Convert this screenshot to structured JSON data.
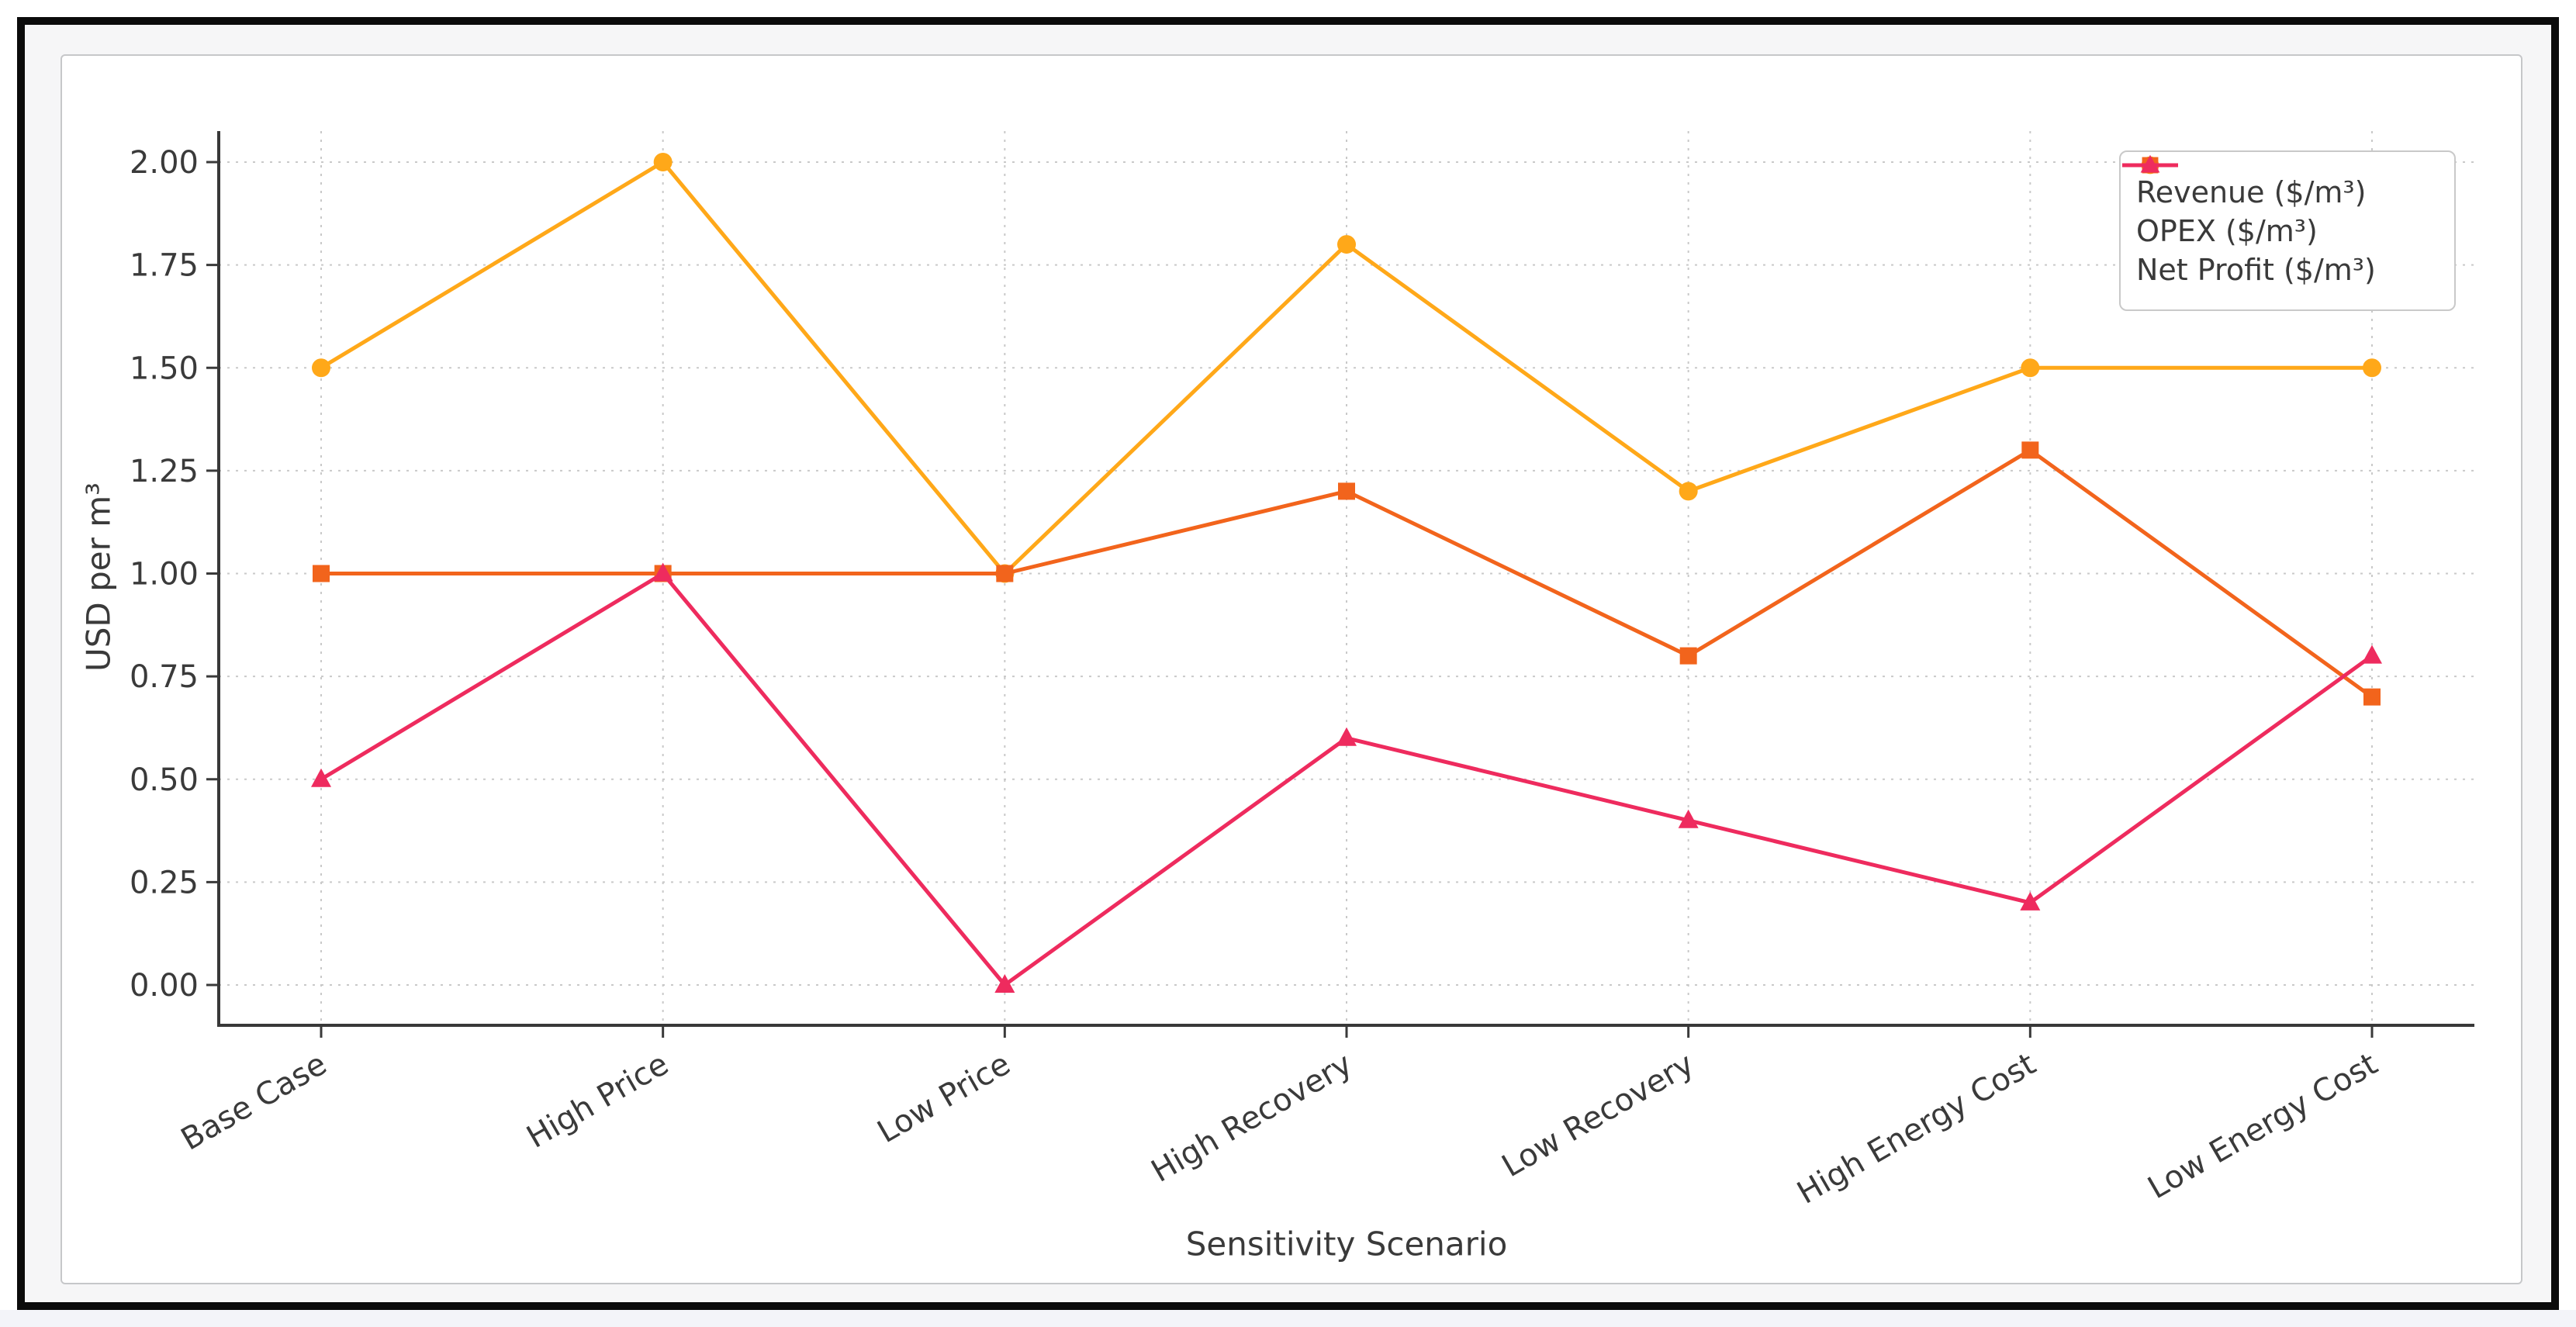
{
  "chart_data": {
    "type": "line",
    "title": "",
    "xlabel": "Sensitivity Scenario",
    "ylabel": "USD per m³",
    "categories": [
      "Base Case",
      "High Price",
      "Low Price",
      "High Recovery",
      "Low Recovery",
      "High Energy Cost",
      "Low Energy Cost"
    ],
    "series": [
      {
        "name": "Revenue ($/m³)",
        "color": "#FFA819",
        "marker": "circle",
        "values": [
          1.5,
          2.0,
          1.0,
          1.8,
          1.2,
          1.5,
          1.5
        ]
      },
      {
        "name": "OPEX ($/m³)",
        "color": "#F2641C",
        "marker": "square",
        "values": [
          1.0,
          1.0,
          1.0,
          1.2,
          0.8,
          1.3,
          0.7
        ]
      },
      {
        "name": "Net Profit ($/m³)",
        "color": "#EE2B5E",
        "marker": "triangle",
        "values": [
          0.5,
          1.0,
          0.0,
          0.6,
          0.4,
          0.2,
          0.8
        ]
      }
    ],
    "y_ticks": [
      "0.00",
      "0.25",
      "0.50",
      "0.75",
      "1.00",
      "1.25",
      "1.50",
      "1.75",
      "2.00"
    ],
    "ylim": [
      0,
      2
    ],
    "grid": true,
    "legend_position": "upper right",
    "x_tick_rotation_deg": 30,
    "colors": {
      "axis_text": "#3a3a3a",
      "spine": "#383838",
      "grid": "#c9c9c9"
    }
  }
}
